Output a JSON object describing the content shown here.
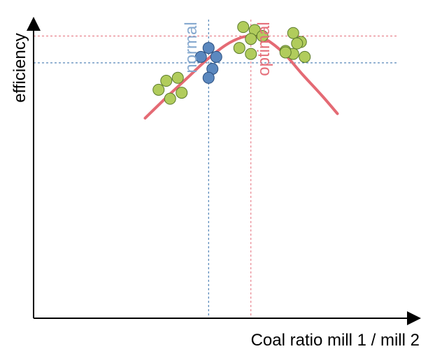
{
  "chart_data": {
    "type": "scatter",
    "title": "",
    "xlabel": "Coal ratio mill 1 / mill 2",
    "ylabel": "efficiency",
    "xlim": [
      0,
      100
    ],
    "ylim": [
      0,
      100
    ],
    "grid": false,
    "reference_lines": {
      "normal": {
        "label": "normal",
        "x": 45.5,
        "y": 85.5,
        "color": "#2f6aa8",
        "label_color": "#86a9cf"
      },
      "optimal": {
        "label": "optimal",
        "x": 56.5,
        "y": 94.5,
        "color": "#e56f7a",
        "label_color": "#e56f7a"
      }
    },
    "series": [
      {
        "color": "#b1cc5c",
        "edge": "#5b7a2c",
        "points": [
          [
            32.5,
            76.5
          ],
          [
            34.5,
            79.5
          ],
          [
            37.5,
            80.5
          ],
          [
            35.5,
            73.5
          ],
          [
            38.5,
            75.5
          ],
          [
            54.5,
            97.5
          ],
          [
            57.5,
            96.5
          ],
          [
            53.5,
            90.5
          ],
          [
            56.5,
            93.5
          ],
          [
            59.5,
            94.5
          ],
          [
            56.5,
            88.5
          ],
          [
            65.5,
            89.5
          ],
          [
            67.5,
            95.5
          ],
          [
            69.5,
            92.5
          ],
          [
            67.5,
            88.5
          ],
          [
            65.5,
            89.0
          ],
          [
            68.5,
            92.0
          ],
          [
            70.5,
            87.5
          ]
        ]
      },
      {
        "color": "#5b88bf",
        "edge": "#2b4f7f",
        "points": [
          [
            43.5,
            87.5
          ],
          [
            45.5,
            90.5
          ],
          [
            47.5,
            87.5
          ],
          [
            46.5,
            83.5
          ],
          [
            45.5,
            80.5
          ]
        ]
      }
    ],
    "curve": {
      "color": "#e46a74",
      "x": [
        29,
        35,
        40,
        45,
        50,
        54,
        57,
        60,
        65,
        70,
        75,
        79
      ],
      "y": [
        67,
        74.5,
        80.5,
        86.5,
        91.5,
        94.0,
        94.5,
        93.7,
        88.8,
        81.5,
        74.5,
        68.5
      ]
    }
  }
}
